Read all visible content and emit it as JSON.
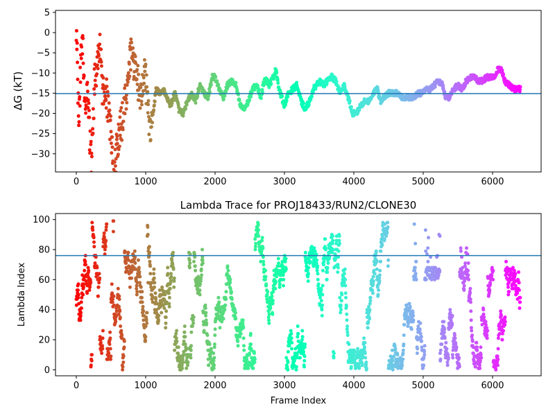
{
  "chart_data": [
    {
      "type": "scatter",
      "title": "",
      "xlabel": "",
      "ylabel": "ΔG (kT)",
      "xlim": [
        -300,
        6700
      ],
      "ylim": [
        -34.5,
        5.5
      ],
      "xticks": [
        0,
        1000,
        2000,
        3000,
        4000,
        5000,
        6000
      ],
      "yticks": [
        5,
        0,
        -5,
        -10,
        -15,
        -20,
        -25,
        -30
      ],
      "hline": -15.1,
      "hline_color": "#1f77b4",
      "colormap": "rainbow",
      "marker_size": 2.5,
      "frame_range": [
        0,
        6400
      ],
      "trace_anchors": [
        [
          0,
          2
        ],
        [
          20,
          -12
        ],
        [
          40,
          -22
        ],
        [
          60,
          -10
        ],
        [
          80,
          3
        ],
        [
          100,
          -8
        ],
        [
          130,
          -20
        ],
        [
          160,
          -14
        ],
        [
          190,
          -25
        ],
        [
          220,
          -33
        ],
        [
          260,
          -13
        ],
        [
          300,
          -9
        ],
        [
          340,
          -2
        ],
        [
          380,
          -15
        ],
        [
          420,
          -12
        ],
        [
          460,
          -20
        ],
        [
          500,
          -25
        ],
        [
          540,
          -34
        ],
        [
          580,
          -29
        ],
        [
          620,
          -25
        ],
        [
          660,
          -22
        ],
        [
          700,
          -16
        ],
        [
          740,
          -13
        ],
        [
          780,
          -5
        ],
        [
          820,
          -7
        ],
        [
          860,
          -11
        ],
        [
          900,
          -13
        ],
        [
          940,
          -16
        ],
        [
          980,
          -9
        ],
        [
          1020,
          -15
        ],
        [
          1060,
          -25
        ],
        [
          1090,
          -22
        ],
        [
          1120,
          -18
        ],
        [
          1150,
          -14
        ],
        [
          1200,
          -15
        ],
        [
          1260,
          -14
        ],
        [
          1300,
          -16
        ],
        [
          1360,
          -18
        ],
        [
          1420,
          -15
        ],
        [
          1480,
          -19
        ],
        [
          1540,
          -20
        ],
        [
          1600,
          -17
        ],
        [
          1660,
          -15
        ],
        [
          1720,
          -17
        ],
        [
          1780,
          -13
        ],
        [
          1840,
          -15
        ],
        [
          1900,
          -16
        ],
        [
          1960,
          -11
        ],
        [
          2000,
          -11
        ],
        [
          2060,
          -14
        ],
        [
          2120,
          -16
        ],
        [
          2180,
          -13
        ],
        [
          2240,
          -12
        ],
        [
          2300,
          -13
        ],
        [
          2360,
          -18
        ],
        [
          2420,
          -19
        ],
        [
          2480,
          -17
        ],
        [
          2540,
          -14
        ],
        [
          2600,
          -13
        ],
        [
          2660,
          -16
        ],
        [
          2720,
          -11
        ],
        [
          2780,
          -13
        ],
        [
          2840,
          -11
        ],
        [
          2880,
          -9
        ],
        [
          2920,
          -14
        ],
        [
          2960,
          -16
        ],
        [
          3000,
          -18
        ],
        [
          3060,
          -15
        ],
        [
          3120,
          -14
        ],
        [
          3180,
          -13
        ],
        [
          3240,
          -17
        ],
        [
          3300,
          -19
        ],
        [
          3360,
          -17
        ],
        [
          3420,
          -14
        ],
        [
          3500,
          -12
        ],
        [
          3560,
          -13
        ],
        [
          3620,
          -12
        ],
        [
          3680,
          -11
        ],
        [
          3740,
          -12
        ],
        [
          3800,
          -15
        ],
        [
          3860,
          -13
        ],
        [
          3920,
          -16
        ],
        [
          3980,
          -20
        ],
        [
          4040,
          -20
        ],
        [
          4100,
          -18
        ],
        [
          4160,
          -17
        ],
        [
          4220,
          -17
        ],
        [
          4280,
          -15
        ],
        [
          4340,
          -14
        ],
        [
          4380,
          -17
        ],
        [
          4440,
          -16
        ],
        [
          4500,
          -15
        ],
        [
          4560,
          -15
        ],
        [
          4620,
          -15
        ],
        [
          4680,
          -16
        ],
        [
          4740,
          -16
        ],
        [
          4800,
          -16
        ],
        [
          4860,
          -16
        ],
        [
          4920,
          -15
        ],
        [
          4980,
          -15
        ],
        [
          5040,
          -14
        ],
        [
          5100,
          -14
        ],
        [
          5160,
          -13
        ],
        [
          5220,
          -12
        ],
        [
          5280,
          -13
        ],
        [
          5320,
          -16
        ],
        [
          5380,
          -16
        ],
        [
          5440,
          -14
        ],
        [
          5500,
          -13
        ],
        [
          5560,
          -14
        ],
        [
          5620,
          -12
        ],
        [
          5680,
          -11
        ],
        [
          5740,
          -11
        ],
        [
          5800,
          -12
        ],
        [
          5860,
          -12
        ],
        [
          5920,
          -11
        ],
        [
          5980,
          -11
        ],
        [
          6040,
          -11
        ],
        [
          6080,
          -9
        ],
        [
          6120,
          -9
        ],
        [
          6180,
          -12
        ],
        [
          6240,
          -13
        ],
        [
          6300,
          -14
        ],
        [
          6360,
          -14
        ],
        [
          6400,
          -14
        ]
      ]
    },
    {
      "type": "scatter",
      "title": "Lambda Trace for PROJ18433/RUN2/CLONE30",
      "xlabel": "Frame Index",
      "ylabel": "Lambda Index",
      "xlim": [
        -300,
        6700
      ],
      "ylim": [
        -4,
        104
      ],
      "xticks": [
        0,
        1000,
        2000,
        3000,
        4000,
        5000,
        6000
      ],
      "yticks": [
        0,
        20,
        40,
        60,
        80,
        100
      ],
      "hline": 76,
      "hline_color": "#1f77b4",
      "colormap": "rainbow",
      "marker_size": 2.5,
      "frame_range": [
        0,
        6400
      ],
      "lambda_range": [
        0,
        99
      ]
    }
  ]
}
